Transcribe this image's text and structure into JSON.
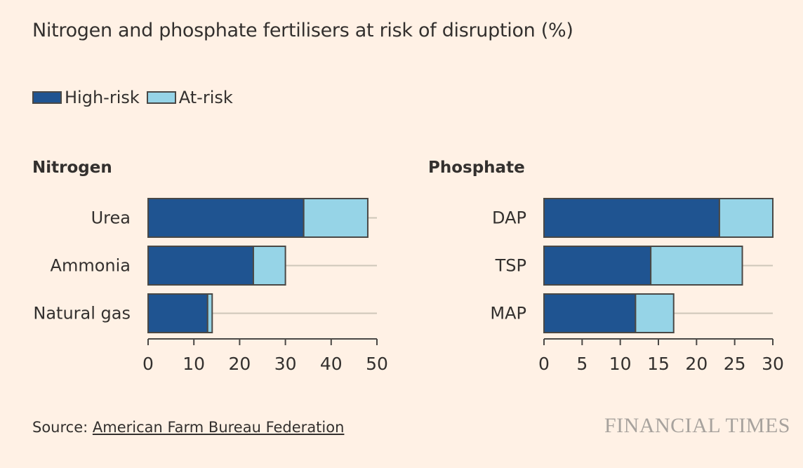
{
  "title": "Nitrogen and phosphate fertilisers at risk of disruption (%)",
  "legend": [
    {
      "label": "High-risk",
      "color": "#1F5491"
    },
    {
      "label": "At-risk",
      "color": "#96D4E7"
    }
  ],
  "source": {
    "prefix": "Source: ",
    "link": "American Farm Bureau Federation"
  },
  "brand": "FINANCIAL TIMES",
  "chart_data": [
    {
      "type": "bar",
      "orientation": "horizontal",
      "stacked": true,
      "title": "Nitrogen",
      "categories": [
        "Urea",
        "Ammonia",
        "Natural gas"
      ],
      "series": [
        {
          "name": "High-risk",
          "values": [
            34,
            23,
            13
          ]
        },
        {
          "name": "At-risk",
          "values": [
            14,
            7,
            1
          ]
        }
      ],
      "xlim": [
        0,
        50
      ],
      "xticks": [
        0,
        10,
        20,
        30,
        40,
        50
      ]
    },
    {
      "type": "bar",
      "orientation": "horizontal",
      "stacked": true,
      "title": "Phosphate",
      "categories": [
        "DAP",
        "TSP",
        "MAP"
      ],
      "series": [
        {
          "name": "High-risk",
          "values": [
            23,
            14,
            12
          ]
        },
        {
          "name": "At-risk",
          "values": [
            7,
            12,
            5
          ]
        }
      ],
      "xlim": [
        0,
        30
      ],
      "xticks": [
        0,
        5,
        10,
        15,
        20,
        25,
        30
      ]
    }
  ]
}
